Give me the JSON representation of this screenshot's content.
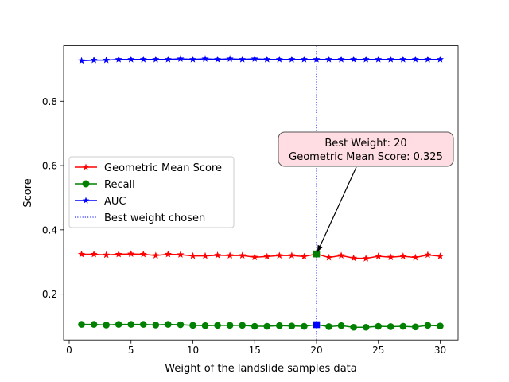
{
  "chart_data": {
    "type": "line",
    "title": "",
    "xlabel": "Weight of the landslide samples data",
    "ylabel": "Score",
    "xlim": [
      -0.45,
      31.45
    ],
    "ylim": [
      0.0575,
      0.9725
    ],
    "xticks": [
      0,
      5,
      10,
      15,
      20,
      25,
      30
    ],
    "yticks": [
      0.2,
      0.4,
      0.6,
      0.8
    ],
    "ytick_labels": [
      "0.2",
      "0.4",
      "0.6",
      "0.8"
    ],
    "grid": false,
    "legend_position": "center-left",
    "x": [
      1,
      2,
      3,
      4,
      5,
      6,
      7,
      8,
      9,
      10,
      11,
      12,
      13,
      14,
      15,
      16,
      17,
      18,
      19,
      20,
      21,
      22,
      23,
      24,
      25,
      26,
      27,
      28,
      29,
      30
    ],
    "series": [
      {
        "name": "Geometric Mean Score",
        "color": "#ff0000",
        "marker": "star",
        "values": [
          0.324,
          0.324,
          0.322,
          0.324,
          0.325,
          0.324,
          0.32,
          0.324,
          0.323,
          0.319,
          0.319,
          0.321,
          0.32,
          0.32,
          0.315,
          0.317,
          0.32,
          0.32,
          0.317,
          0.325,
          0.314,
          0.32,
          0.312,
          0.311,
          0.318,
          0.315,
          0.318,
          0.314,
          0.322,
          0.318
        ]
      },
      {
        "name": "Recall",
        "color": "#008000",
        "marker": "circle",
        "values": [
          0.106,
          0.106,
          0.104,
          0.106,
          0.106,
          0.106,
          0.104,
          0.106,
          0.105,
          0.103,
          0.102,
          0.103,
          0.103,
          0.103,
          0.1,
          0.1,
          0.102,
          0.101,
          0.1,
          0.105,
          0.099,
          0.102,
          0.097,
          0.097,
          0.1,
          0.099,
          0.1,
          0.098,
          0.103,
          0.101
        ]
      },
      {
        "name": "AUC",
        "color": "#0000ff",
        "marker": "star",
        "values": [
          0.926,
          0.928,
          0.928,
          0.93,
          0.93,
          0.93,
          0.93,
          0.93,
          0.932,
          0.93,
          0.932,
          0.93,
          0.932,
          0.93,
          0.932,
          0.93,
          0.93,
          0.93,
          0.93,
          0.93,
          0.93,
          0.93,
          0.93,
          0.93,
          0.93,
          0.93,
          0.93,
          0.93,
          0.93,
          0.93
        ]
      }
    ],
    "best_line": {
      "name": "Best weight chosen",
      "x": 20,
      "color": "#0000ff",
      "style": "dotted"
    },
    "best_markers": [
      {
        "x": 20,
        "y": 0.325,
        "color": "#008000",
        "shape": "square"
      },
      {
        "x": 20,
        "y": 0.105,
        "color": "#0000ff",
        "shape": "square"
      }
    ],
    "annotation": {
      "line1": "Best Weight: 20",
      "line2": "Geometric Mean Score: 0.325",
      "target": {
        "x": 20,
        "y": 0.325
      },
      "box_fill": "#ffdde2",
      "box_edge": "#555555"
    }
  }
}
